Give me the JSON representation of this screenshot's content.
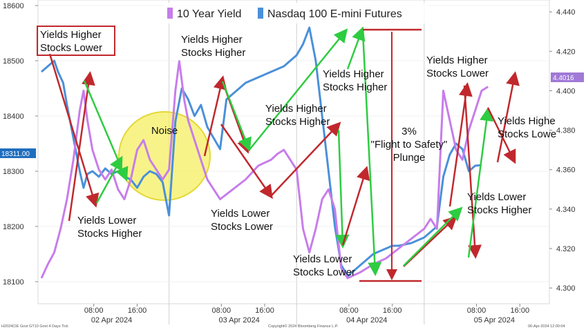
{
  "chart_data": {
    "type": "line",
    "title": "",
    "legend": {
      "placement": "top-center",
      "entries": [
        {
          "label": "10 Year Yield",
          "color": "#c77dea"
        },
        {
          "label": "Nasdaq 100 E-mini Futures",
          "color": "#4a90d9"
        }
      ]
    },
    "left_axis": {
      "min": 18060,
      "max": 18610,
      "ticks": [
        "18600",
        "18500",
        "18400",
        "18300",
        "18200",
        "18100"
      ],
      "tick_values": [
        18600,
        18500,
        18400,
        18300,
        18200,
        18100
      ]
    },
    "right_axis": {
      "min": 4.292,
      "max": 4.446,
      "ticks": [
        "4.440",
        "4.420",
        "4.400",
        "4.380",
        "4.360",
        "4.340",
        "4.320",
        "4.300"
      ],
      "tick_values": [
        4.44,
        4.42,
        4.4,
        4.38,
        4.36,
        4.34,
        4.32,
        4.3
      ]
    },
    "x_axis": {
      "time_ticks": [
        {
          "t": 0.41,
          "label": "08:00"
        },
        {
          "t": 0.75,
          "label": "16:00"
        },
        {
          "t": 1.41,
          "label": "08:00"
        },
        {
          "t": 1.75,
          "label": "16:00"
        },
        {
          "t": 2.41,
          "label": "08:00"
        },
        {
          "t": 2.75,
          "label": "16:00"
        },
        {
          "t": 3.41,
          "label": "08:00"
        },
        {
          "t": 3.75,
          "label": "16:00"
        }
      ],
      "date_labels": [
        {
          "t": 0.55,
          "label": "02 Apr 2024"
        },
        {
          "t": 1.55,
          "label": "03 Apr 2024"
        },
        {
          "t": 2.55,
          "label": "04 Apr 2024"
        },
        {
          "t": 3.55,
          "label": "05 Apr 2024"
        }
      ],
      "day_separators": [
        1.0,
        2.0,
        3.0
      ]
    },
    "current_value_tags": {
      "left": "18311.00",
      "right": "4.4016"
    },
    "series": [
      {
        "name": "10 Year Yield",
        "axis": "right",
        "points": [
          [
            0.0,
            4.305
          ],
          [
            0.05,
            4.312
          ],
          [
            0.1,
            4.318
          ],
          [
            0.15,
            4.33
          ],
          [
            0.2,
            4.345
          ],
          [
            0.25,
            4.365
          ],
          [
            0.3,
            4.39
          ],
          [
            0.33,
            4.4
          ],
          [
            0.36,
            4.385
          ],
          [
            0.4,
            4.37
          ],
          [
            0.45,
            4.36
          ],
          [
            0.5,
            4.355
          ],
          [
            0.55,
            4.36
          ],
          [
            0.6,
            4.35
          ],
          [
            0.65,
            4.345
          ],
          [
            0.7,
            4.355
          ],
          [
            0.75,
            4.37
          ],
          [
            0.8,
            4.375
          ],
          [
            0.85,
            4.365
          ],
          [
            0.9,
            4.36
          ],
          [
            0.95,
            4.355
          ],
          [
            1.0,
            4.36
          ],
          [
            1.05,
            4.4
          ],
          [
            1.08,
            4.415
          ],
          [
            1.12,
            4.395
          ],
          [
            1.15,
            4.385
          ],
          [
            1.2,
            4.375
          ],
          [
            1.3,
            4.355
          ],
          [
            1.4,
            4.345
          ],
          [
            1.5,
            4.35
          ],
          [
            1.6,
            4.355
          ],
          [
            1.7,
            4.362
          ],
          [
            1.8,
            4.365
          ],
          [
            1.85,
            4.368
          ],
          [
            1.9,
            4.37
          ],
          [
            2.0,
            4.36
          ],
          [
            2.05,
            4.33
          ],
          [
            2.1,
            4.318
          ],
          [
            2.15,
            4.33
          ],
          [
            2.2,
            4.345
          ],
          [
            2.25,
            4.35
          ],
          [
            2.3,
            4.34
          ],
          [
            2.35,
            4.31
          ],
          [
            2.4,
            4.305
          ],
          [
            2.5,
            4.308
          ],
          [
            2.6,
            4.312
          ],
          [
            2.7,
            4.315
          ],
          [
            2.8,
            4.32
          ],
          [
            2.9,
            4.325
          ],
          [
            3.0,
            4.33
          ],
          [
            3.05,
            4.335
          ],
          [
            3.1,
            4.33
          ],
          [
            3.15,
            4.4
          ],
          [
            3.2,
            4.385
          ],
          [
            3.25,
            4.37
          ],
          [
            3.3,
            4.365
          ],
          [
            3.35,
            4.38
          ],
          [
            3.4,
            4.39
          ],
          [
            3.45,
            4.4
          ],
          [
            3.5,
            4.402
          ]
        ]
      },
      {
        "name": "Nasdaq 100 E-mini Futures",
        "axis": "left",
        "points": [
          [
            0.0,
            18480
          ],
          [
            0.05,
            18490
          ],
          [
            0.1,
            18500
          ],
          [
            0.13,
            18480
          ],
          [
            0.17,
            18460
          ],
          [
            0.2,
            18420
          ],
          [
            0.25,
            18360
          ],
          [
            0.3,
            18300
          ],
          [
            0.33,
            18270
          ],
          [
            0.36,
            18295
          ],
          [
            0.4,
            18300
          ],
          [
            0.45,
            18290
          ],
          [
            0.5,
            18305
          ],
          [
            0.55,
            18295
          ],
          [
            0.6,
            18300
          ],
          [
            0.65,
            18290
          ],
          [
            0.7,
            18285
          ],
          [
            0.75,
            18270
          ],
          [
            0.8,
            18290
          ],
          [
            0.85,
            18300
          ],
          [
            0.9,
            18295
          ],
          [
            0.95,
            18280
          ],
          [
            1.0,
            18220
          ],
          [
            1.05,
            18390
          ],
          [
            1.1,
            18450
          ],
          [
            1.15,
            18430
          ],
          [
            1.2,
            18400
          ],
          [
            1.25,
            18420
          ],
          [
            1.3,
            18380
          ],
          [
            1.35,
            18360
          ],
          [
            1.4,
            18340
          ],
          [
            1.45,
            18430
          ],
          [
            1.5,
            18440
          ],
          [
            1.55,
            18450
          ],
          [
            1.6,
            18460
          ],
          [
            1.65,
            18465
          ],
          [
            1.7,
            18470
          ],
          [
            1.8,
            18480
          ],
          [
            1.9,
            18490
          ],
          [
            2.0,
            18510
          ],
          [
            2.05,
            18530
          ],
          [
            2.1,
            18560
          ],
          [
            2.15,
            18500
          ],
          [
            2.2,
            18400
          ],
          [
            2.25,
            18300
          ],
          [
            2.3,
            18200
          ],
          [
            2.35,
            18130
          ],
          [
            2.4,
            18110
          ],
          [
            2.45,
            18120
          ],
          [
            2.5,
            18130
          ],
          [
            2.55,
            18140
          ],
          [
            2.6,
            18150
          ],
          [
            2.65,
            18155
          ],
          [
            2.7,
            18160
          ],
          [
            2.75,
            18165
          ],
          [
            2.8,
            18165
          ],
          [
            2.9,
            18170
          ],
          [
            3.0,
            18180
          ],
          [
            3.05,
            18190
          ],
          [
            3.1,
            18200
          ],
          [
            3.15,
            18290
          ],
          [
            3.2,
            18330
          ],
          [
            3.25,
            18350
          ],
          [
            3.3,
            18340
          ],
          [
            3.35,
            18300
          ],
          [
            3.4,
            18310
          ],
          [
            3.45,
            18311
          ]
        ]
      }
    ],
    "annotations": [
      {
        "label": "Yields Higher\nStocks Lower",
        "boxed": true
      },
      {
        "label": "Yields Higher\nStocks Higher"
      },
      {
        "label": "Yields Higher\nStocks Higher"
      },
      {
        "label": "Yields Higher\nStocks Higher"
      },
      {
        "label": "Yields Higher\nStocks Lower"
      },
      {
        "label": "Yields Highe\nStocks Lowe"
      },
      {
        "label": "Noise"
      },
      {
        "label": "3%\n\"Flight to Safety\"\nPlunge"
      },
      {
        "label": "Yields Lower\nStocks Higher"
      },
      {
        "label": "Yields Lower\nStocks Lower"
      },
      {
        "label": "Yields Lower\nStocks Lower"
      },
      {
        "label": "Yields Lower\nStocks Higher"
      }
    ],
    "footer": {
      "left": "H2024CIE Govt GT10   Govt 4 Days  Tick",
      "center": "Copyright© 2024 Bloomberg Finance L.P.",
      "right": "06-Apr-2024 12:00:04"
    }
  }
}
